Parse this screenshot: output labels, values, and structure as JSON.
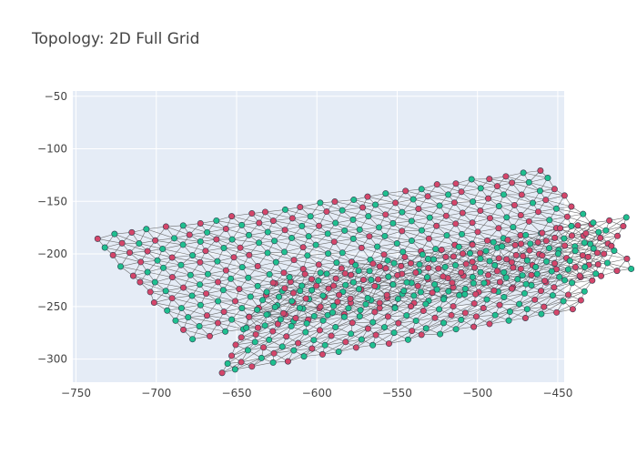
{
  "chart_data": {
    "type": "scatter",
    "title": "Topology: 2D Full Grid",
    "xlabel": "",
    "ylabel": "",
    "xlim": [
      -752,
      -446
    ],
    "ylim": [
      -322,
      -45
    ],
    "x_ticks": [
      -750,
      -700,
      -650,
      -600,
      -550,
      -500,
      -450
    ],
    "y_ticks": [
      -50,
      -100,
      -150,
      -200,
      -250,
      -300
    ],
    "x_tick_labels": [
      "−750",
      "−700",
      "−650",
      "−600",
      "−550",
      "−500",
      "−450"
    ],
    "y_tick_labels": [
      "−50",
      "−100",
      "−150",
      "−200",
      "−250",
      "−300"
    ],
    "grid": true,
    "legend": "none",
    "colors": {
      "plot_bg": "#e5ecf6",
      "grid": "#ffffff",
      "edge": "#6e6e6e",
      "node_red": "#d4466a",
      "node_green": "#1fbf8f",
      "node_border": "#2f3f4f"
    },
    "grids": [
      {
        "name": "main",
        "rows": 12,
        "cols": 27,
        "origin": [
          -737,
          -185
        ],
        "row_step": [
          5.3,
          -8.6
        ],
        "col_step": [
          10.6,
          2.5
        ]
      },
      {
        "name": "folded",
        "rows": 11,
        "cols": 22,
        "origin": [
          -660,
          -313
        ],
        "row_step": [
          3.2,
          8.7
        ],
        "col_step": [
          10.5,
          2.9
        ]
      }
    ]
  }
}
